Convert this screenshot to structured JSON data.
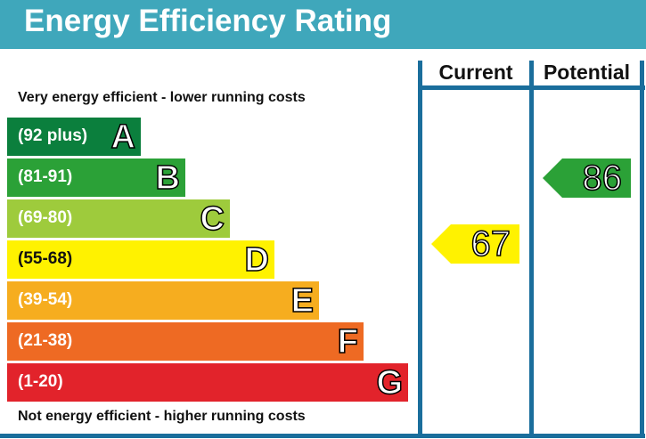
{
  "title": "Energy Efficiency Rating",
  "top_note": "Very energy efficient - lower running costs",
  "bottom_note": "Not energy efficient - higher running costs",
  "columns": [
    "Current",
    "Potential"
  ],
  "chart_data": {
    "type": "bar",
    "bands": [
      {
        "letter": "A",
        "range": "(92 plus)",
        "color": "#0b7f3d"
      },
      {
        "letter": "B",
        "range": "(81-91)",
        "color": "#2ba137"
      },
      {
        "letter": "C",
        "range": "(69-80)",
        "color": "#9ecb3c"
      },
      {
        "letter": "D",
        "range": "(55-68)",
        "color": "#fff200"
      },
      {
        "letter": "E",
        "range": "(39-54)",
        "color": "#f6ad1f"
      },
      {
        "letter": "F",
        "range": "(21-38)",
        "color": "#ee6a23"
      },
      {
        "letter": "G",
        "range": "(1-20)",
        "color": "#e2232b"
      }
    ],
    "current": {
      "value": "67",
      "band": "D",
      "color": "#fff200"
    },
    "potential": {
      "value": "86",
      "band": "B",
      "color": "#2ba137"
    }
  }
}
